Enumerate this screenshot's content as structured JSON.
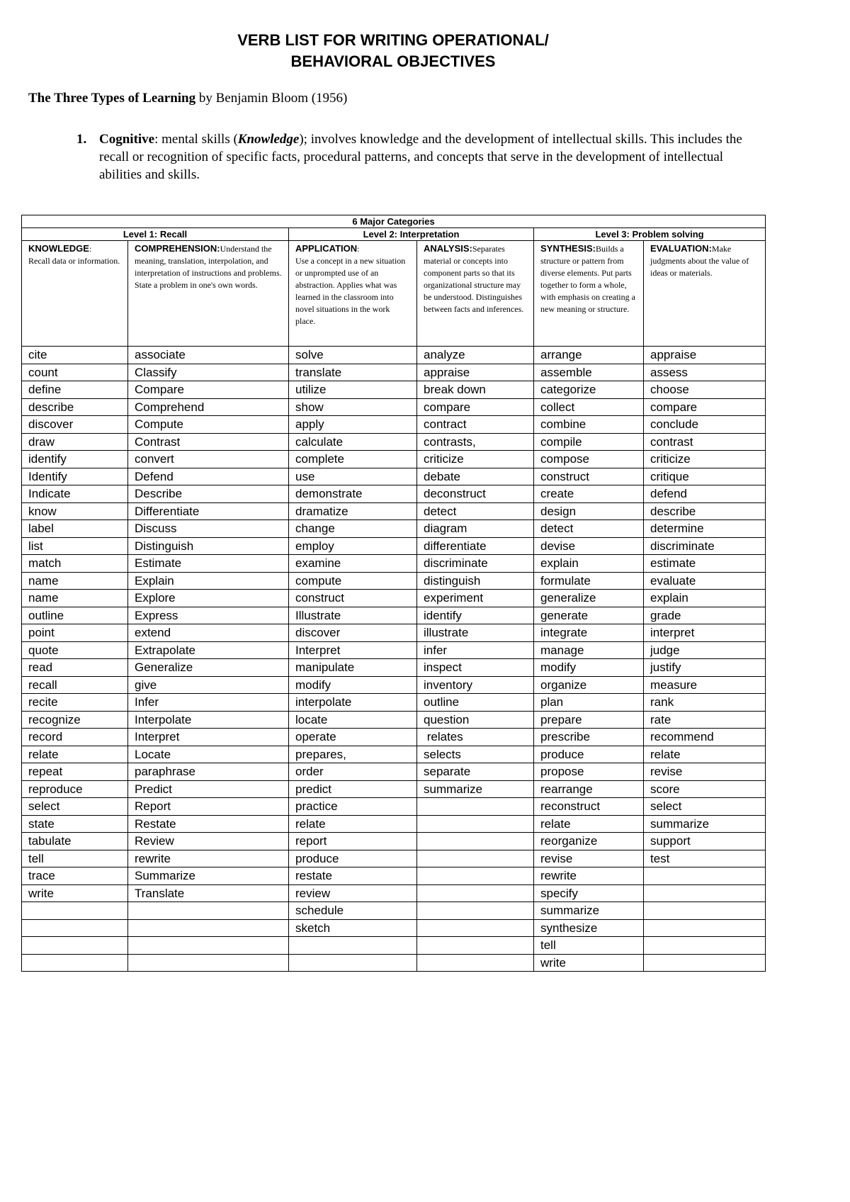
{
  "title_line1": "VERB LIST FOR WRITING OPERATIONAL/",
  "title_line2": "BEHAVIORAL OBJECTIVES",
  "subtitle": {
    "bold": "The Three Types of Learning",
    "rest": " by Benjamin Bloom (1956)"
  },
  "item1": {
    "number": "1.",
    "term": "Cognitive",
    "text_a": ": mental skills (",
    "knowledge": "Knowledge",
    "text_b": "); involves knowledge and the development of intellectual skills. This includes the recall or recognition of specific facts, procedural patterns, and concepts that serve in the development of intellectual abilities and skills."
  },
  "table": {
    "top_header": "6 Major Categories",
    "levels": [
      "Level 1: Recall",
      "Level 2: Interpretation",
      "Level 3: Problem solving"
    ],
    "categories": [
      {
        "name": "KNOWLEDGE",
        "sep": ": ",
        "desc": "Recall data or information."
      },
      {
        "name": "COMPREHENSION:",
        "sep": "",
        "desc": "Understand the meaning, translation, interpolation, and interpretation of instructions and problems. State a problem in one's own words."
      },
      {
        "name": "APPLICATION",
        "sep": ": ",
        "desc": "Use a concept in a new situation or unprompted use of an abstraction. Applies what was learned in the classroom into novel situations in the work place."
      },
      {
        "name": "ANALYSIS:",
        "sep": "",
        "desc": "Separates material or concepts into component parts so that its organizational structure may be understood. Distinguishes between facts and inferences."
      },
      {
        "name": "SYNTHESIS:",
        "sep": "",
        "desc": "Builds a structure or pattern from diverse elements. Put parts together to form a whole, with emphasis on creating a new meaning or structure."
      },
      {
        "name": "EVALUATION:",
        "sep": "",
        "desc": "Make judgments about the value of ideas or materials."
      }
    ],
    "columns": [
      [
        "cite",
        "count",
        "define",
        "describe",
        "discover",
        "draw",
        "identify",
        "Identify",
        "Indicate",
        "know",
        "label",
        "list",
        "match",
        "name",
        "name",
        "outline",
        "point",
        "quote",
        "read",
        "recall",
        "recite",
        "recognize",
        "record",
        "relate",
        "repeat",
        "reproduce",
        "select",
        "state",
        "tabulate",
        "tell",
        "trace",
        "write"
      ],
      [
        "associate",
        "Classify",
        "Compare",
        "Comprehend",
        "Compute",
        "Contrast",
        "convert",
        "Defend",
        "Describe",
        "Differentiate",
        "Discuss",
        "Distinguish",
        "Estimate",
        "Explain",
        "Explore",
        "Express",
        "extend",
        "Extrapolate",
        "Generalize",
        "give",
        "Infer",
        "Interpolate",
        "Interpret",
        "Locate",
        "paraphrase",
        "Predict",
        "Report",
        "Restate",
        "Review",
        "rewrite",
        "Summarize",
        "Translate"
      ],
      [
        "solve",
        "translate",
        "utilize",
        "show",
        "apply",
        "calculate",
        "complete",
        "use",
        "demonstrate",
        "dramatize",
        "change",
        "employ",
        "examine",
        "compute",
        "construct",
        "Illustrate",
        "discover",
        "Interpret",
        "manipulate",
        "modify",
        "interpolate",
        "locate",
        "operate",
        "prepares,",
        "order",
        "predict",
        "practice",
        "relate",
        "report",
        "produce",
        "restate",
        "review",
        "schedule",
        "sketch"
      ],
      [
        "analyze",
        "appraise",
        "break down",
        "compare",
        "contract",
        "contrasts,",
        "criticize",
        "debate",
        "deconstruct",
        "detect",
        "diagram",
        "differentiate",
        "discriminate",
        "distinguish",
        "experiment",
        "identify",
        "illustrate",
        "infer",
        "inspect",
        "inventory",
        "outline",
        "question",
        " relates",
        "selects",
        "separate",
        "summarize"
      ],
      [
        "arrange",
        "assemble",
        "categorize",
        "collect",
        "combine",
        "compile",
        "compose",
        "construct",
        "create",
        "design",
        "detect",
        "devise",
        "explain",
        "formulate",
        "generalize",
        "generate",
        "integrate",
        "manage",
        "modify",
        "organize",
        "plan",
        "prepare",
        "prescribe",
        "produce",
        "propose",
        "rearrange",
        "reconstruct",
        "relate",
        "reorganize",
        "revise",
        "rewrite",
        "specify",
        "summarize",
        "synthesize",
        "tell",
        "write"
      ],
      [
        "appraise",
        "assess",
        "choose",
        "compare",
        "conclude",
        "contrast",
        "criticize",
        "critique",
        "defend",
        "describe",
        "determine",
        "discriminate",
        "estimate",
        "evaluate",
        "explain",
        "grade",
        "interpret",
        "judge",
        "justify",
        "measure",
        "rank",
        "rate",
        "recommend",
        "relate",
        "revise",
        "score",
        "select",
        "summarize",
        "support",
        "test"
      ]
    ]
  }
}
